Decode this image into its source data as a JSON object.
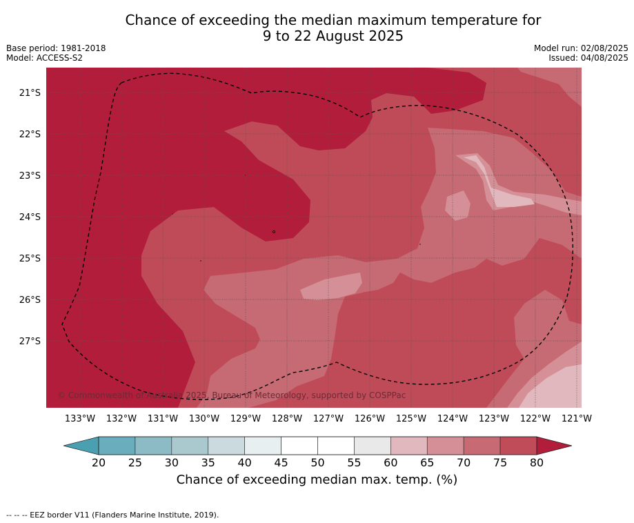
{
  "title": {
    "line1": "Chance of exceeding the median maximum temperature for",
    "line2": "9 to 22 August 2025"
  },
  "meta": {
    "base_period": "Base period: 1981-2018",
    "model": "Model: ACCESS-S2",
    "model_run": "Model run: 02/08/2025",
    "issued": "Issued: 04/08/2025"
  },
  "map": {
    "latitude_labels": [
      "21°S",
      "22°S",
      "23°S",
      "24°S",
      "25°S",
      "26°S",
      "27°S"
    ],
    "longitude_labels": [
      "133°W",
      "132°W",
      "131°W",
      "130°W",
      "129°W",
      "128°W",
      "127°W",
      "126°W",
      "125°W",
      "124°W",
      "123°W",
      "122°W",
      "121°W"
    ],
    "copyright": "© Commonwealth of Australia 2025, Bureau of Meteorology, supported by COSPPac",
    "eez_border_style": "dashed"
  },
  "colorbar": {
    "ticks": [
      "20",
      "25",
      "30",
      "35",
      "40",
      "45",
      "50",
      "55",
      "60",
      "65",
      "70",
      "75",
      "80"
    ],
    "colors": [
      "#6aaebd",
      "#8cbac5",
      "#a9c9cf",
      "#cbdade",
      "#e8eff1",
      "#ffffff",
      "#ffffff",
      "#e9e9e9",
      "#e1b8bd",
      "#d58f97",
      "#c76a73",
      "#bf4c58"
    ],
    "low_extend_color": "#4a9fb0",
    "high_extend_color": "#b11d3a",
    "title": "Chance of exceeding median max. temp. (%)"
  },
  "footnote": "-- -- -- EEZ border V11 (Flanders Marine Institute, 2019)."
}
